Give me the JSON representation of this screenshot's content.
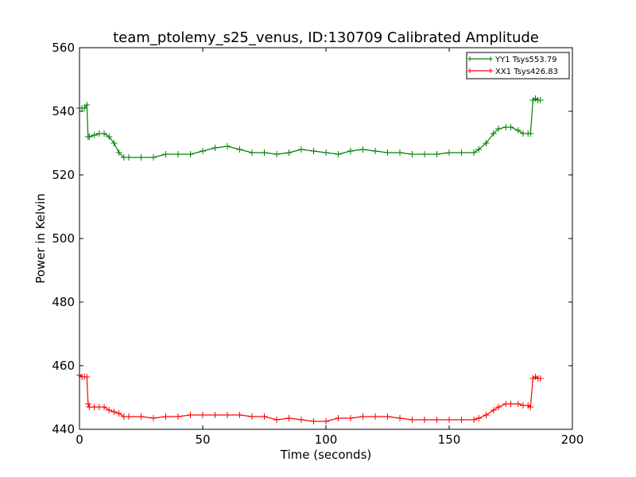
{
  "chart_data": {
    "type": "line",
    "title": "team_ptolemy_s25_venus, ID:130709 Calibrated Amplitude",
    "xlabel": "Time (seconds)",
    "ylabel": "Power in Kelvin",
    "xlim": [
      0,
      200
    ],
    "ylim": [
      440,
      560
    ],
    "xticks": [
      "0",
      "50",
      "100",
      "150",
      "200"
    ],
    "yticks": [
      "440",
      "460",
      "480",
      "500",
      "520",
      "540",
      "560"
    ],
    "grid": false,
    "legend_position": "top-right",
    "marker": "+",
    "series": [
      {
        "name": "YY1 Tsys553.79",
        "color": "#008000",
        "x": [
          0,
          1,
          2,
          3,
          3.5,
          4,
          6,
          8,
          10,
          12,
          14,
          16,
          18,
          20,
          25,
          30,
          35,
          40,
          45,
          50,
          55,
          60,
          65,
          70,
          75,
          80,
          85,
          90,
          95,
          100,
          105,
          110,
          115,
          120,
          125,
          130,
          135,
          140,
          145,
          150,
          155,
          160,
          162,
          165,
          168,
          170,
          173,
          175,
          178,
          180,
          182,
          183,
          184,
          185,
          186,
          187
        ],
        "y": [
          541,
          541,
          541,
          542,
          532,
          532,
          532.5,
          533,
          533,
          532,
          530,
          527,
          525.5,
          525.5,
          525.5,
          525.5,
          526.5,
          526.5,
          526.5,
          527.5,
          528.5,
          529,
          528,
          527,
          527,
          526.5,
          527,
          528,
          527.5,
          527,
          526.5,
          527.5,
          528,
          527.5,
          527,
          527,
          526.5,
          526.5,
          526.5,
          527,
          527,
          527,
          528,
          530,
          533,
          534.5,
          535,
          535,
          534,
          533,
          533,
          533,
          543.5,
          544,
          543.5,
          543.5
        ]
      },
      {
        "name": "XX1 Tsys426.83",
        "color": "#ff0000",
        "x": [
          0,
          1,
          2,
          3,
          3.5,
          4,
          6,
          8,
          10,
          12,
          14,
          16,
          18,
          20,
          25,
          30,
          35,
          40,
          45,
          50,
          55,
          60,
          65,
          70,
          75,
          80,
          85,
          90,
          95,
          100,
          105,
          110,
          115,
          120,
          125,
          130,
          135,
          140,
          145,
          150,
          155,
          160,
          162,
          165,
          168,
          170,
          173,
          175,
          178,
          180,
          182,
          183,
          184,
          185,
          186,
          187
        ],
        "y": [
          457,
          456.5,
          456.5,
          456.5,
          448,
          447,
          447,
          447,
          447,
          446,
          445.5,
          445,
          444,
          444,
          444,
          443.5,
          444,
          444,
          444.5,
          444.5,
          444.5,
          444.5,
          444.5,
          444,
          444,
          443,
          443.5,
          443,
          442.5,
          442.5,
          443.5,
          443.5,
          444,
          444,
          444,
          443.5,
          443,
          443,
          443,
          443,
          443,
          443,
          443.5,
          444.5,
          446,
          447,
          448,
          448,
          448,
          447.5,
          447.5,
          447,
          456,
          456.5,
          456,
          456
        ]
      }
    ]
  }
}
